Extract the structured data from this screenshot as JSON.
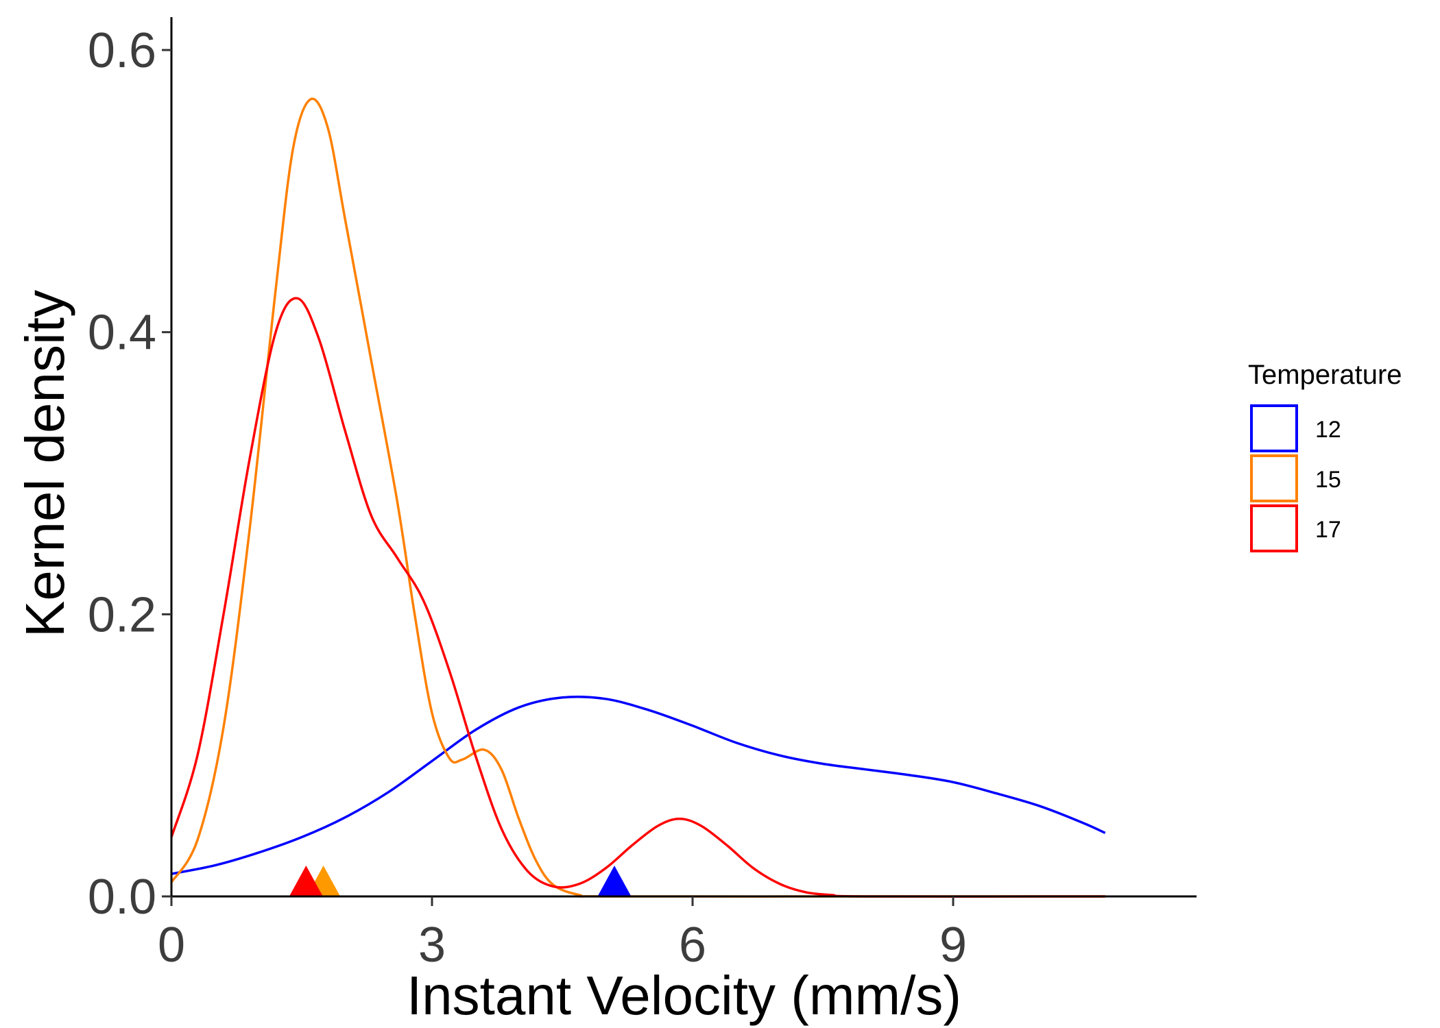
{
  "chart_data": {
    "type": "line",
    "title": "",
    "xlabel": "Instant Velocity (mm/s)",
    "ylabel": "Kernel density",
    "xlim": [
      0,
      11.8
    ],
    "ylim": [
      0,
      0.62
    ],
    "x_ticks": [
      0,
      3,
      6,
      9
    ],
    "x_tick_labels": [
      "0",
      "3",
      "6",
      "9"
    ],
    "y_ticks": [
      0.0,
      0.2,
      0.4,
      0.6
    ],
    "y_tick_labels": [
      "0.0",
      "0.2",
      "0.4",
      "0.6"
    ],
    "grid": false,
    "legend": {
      "title": "Temperature",
      "placement": "right"
    },
    "series": [
      {
        "name": "12",
        "color": "#0000ff",
        "points": [
          [
            0,
            0.016
          ],
          [
            0.5,
            0.022
          ],
          [
            1.0,
            0.031
          ],
          [
            1.5,
            0.042
          ],
          [
            2.0,
            0.056
          ],
          [
            2.5,
            0.074
          ],
          [
            3.0,
            0.096
          ],
          [
            3.5,
            0.118
          ],
          [
            4.0,
            0.134
          ],
          [
            4.5,
            0.141
          ],
          [
            5.0,
            0.14
          ],
          [
            5.5,
            0.132
          ],
          [
            6.0,
            0.121
          ],
          [
            6.5,
            0.109
          ],
          [
            7.0,
            0.1
          ],
          [
            7.5,
            0.094
          ],
          [
            8.0,
            0.09
          ],
          [
            8.5,
            0.086
          ],
          [
            9.0,
            0.081
          ],
          [
            9.5,
            0.073
          ],
          [
            10.0,
            0.064
          ],
          [
            10.5,
            0.052
          ],
          [
            10.75,
            0.045
          ]
        ],
        "marker_x": 5.1
      },
      {
        "name": "15",
        "color": "#ff8000",
        "points": [
          [
            0,
            0.01
          ],
          [
            0.3,
            0.04
          ],
          [
            0.6,
            0.12
          ],
          [
            0.9,
            0.26
          ],
          [
            1.2,
            0.43
          ],
          [
            1.4,
            0.53
          ],
          [
            1.6,
            0.565
          ],
          [
            1.8,
            0.545
          ],
          [
            2.0,
            0.48
          ],
          [
            2.3,
            0.38
          ],
          [
            2.6,
            0.28
          ],
          [
            2.8,
            0.2
          ],
          [
            3.0,
            0.13
          ],
          [
            3.2,
            0.098
          ],
          [
            3.35,
            0.097
          ],
          [
            3.6,
            0.104
          ],
          [
            3.8,
            0.09
          ],
          [
            4.0,
            0.055
          ],
          [
            4.2,
            0.025
          ],
          [
            4.4,
            0.008
          ],
          [
            4.7,
            0.001
          ],
          [
            5.0,
            0.0
          ],
          [
            8.0,
            0.0
          ],
          [
            10.75,
            0.0
          ]
        ],
        "marker_x": 1.75
      },
      {
        "name": "17",
        "color": "#ff0000",
        "points": [
          [
            0,
            0.042
          ],
          [
            0.3,
            0.1
          ],
          [
            0.6,
            0.2
          ],
          [
            0.9,
            0.31
          ],
          [
            1.2,
            0.4
          ],
          [
            1.45,
            0.424
          ],
          [
            1.7,
            0.395
          ],
          [
            2.0,
            0.33
          ],
          [
            2.3,
            0.27
          ],
          [
            2.6,
            0.24
          ],
          [
            2.9,
            0.21
          ],
          [
            3.2,
            0.16
          ],
          [
            3.5,
            0.1
          ],
          [
            3.8,
            0.048
          ],
          [
            4.1,
            0.018
          ],
          [
            4.4,
            0.007
          ],
          [
            4.7,
            0.009
          ],
          [
            5.0,
            0.02
          ],
          [
            5.3,
            0.036
          ],
          [
            5.6,
            0.05
          ],
          [
            5.85,
            0.055
          ],
          [
            6.1,
            0.05
          ],
          [
            6.4,
            0.036
          ],
          [
            6.7,
            0.02
          ],
          [
            7.0,
            0.009
          ],
          [
            7.3,
            0.003
          ],
          [
            7.6,
            0.001
          ],
          [
            8.0,
            0.0
          ],
          [
            10.75,
            0.0
          ]
        ],
        "marker_x": 1.55
      }
    ]
  }
}
